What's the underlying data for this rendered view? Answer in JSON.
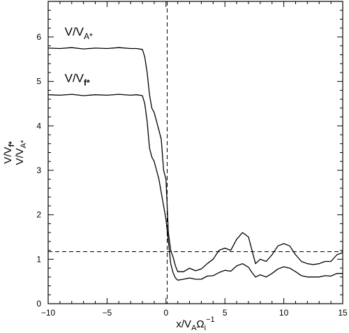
{
  "chart_data": {
    "type": "line",
    "xlim": [
      -10,
      15
    ],
    "ylim": [
      0,
      6.8
    ],
    "x_ticks": [
      -10,
      -5,
      0,
      5,
      10,
      15
    ],
    "y_ticks": [
      0,
      1,
      2,
      3,
      4,
      5,
      6
    ],
    "xlabel": {
      "base": "x/V",
      "sub1": "A",
      "mid": "Ω",
      "sub2": "i",
      "sup": "−1"
    },
    "ylabel": {
      "line1": {
        "base": "V/V",
        "sub": "f*"
      },
      "line2": {
        "base": "V/V",
        "sub": "A*"
      }
    },
    "reference_lines": {
      "vertical_x": 0.1,
      "horizontal_y": 1.17
    },
    "series": [
      {
        "name": "V/V_A*",
        "label": {
          "base": "V/V",
          "sub": "A*"
        },
        "x": [
          -10,
          -9,
          -8,
          -7,
          -6,
          -5,
          -4,
          -3,
          -2.5,
          -2,
          -1.8,
          -1.6,
          -1.4,
          -1.2,
          -1,
          -0.8,
          -0.6,
          -0.4,
          -0.2,
          0,
          0.2,
          0.4,
          0.6,
          0.8,
          1.0,
          1.5,
          2,
          2.5,
          3,
          3.5,
          4,
          4.5,
          5,
          5.5,
          6,
          6.5,
          7,
          7.3,
          7.6,
          8,
          8.5,
          9,
          9.5,
          10,
          10.5,
          11,
          11.5,
          12,
          12.5,
          13,
          13.5,
          14,
          14.5,
          15
        ],
        "y": [
          5.75,
          5.74,
          5.76,
          5.73,
          5.75,
          5.74,
          5.76,
          5.74,
          5.74,
          5.72,
          5.55,
          5.2,
          4.7,
          4.4,
          4.3,
          4.1,
          3.9,
          3.7,
          3.0,
          2.8,
          1.6,
          1.2,
          1.05,
          0.85,
          0.72,
          0.72,
          0.8,
          0.74,
          0.78,
          0.9,
          1.0,
          1.2,
          1.25,
          1.2,
          1.45,
          1.6,
          1.5,
          1.2,
          0.9,
          1.0,
          0.95,
          1.1,
          1.3,
          1.35,
          1.3,
          1.1,
          0.95,
          0.9,
          0.88,
          0.9,
          0.95,
          0.95,
          1.1,
          1.15
        ]
      },
      {
        "name": "V/V_f*",
        "label": {
          "base": "V/V",
          "sub": "f*"
        },
        "x": [
          -10,
          -9,
          -8,
          -7,
          -6,
          -5,
          -4,
          -3,
          -2.5,
          -2,
          -1.8,
          -1.6,
          -1.4,
          -1.2,
          -1,
          -0.8,
          -0.6,
          -0.4,
          -0.2,
          0,
          0.2,
          0.4,
          0.6,
          0.8,
          1.0,
          1.5,
          2,
          2.5,
          3,
          3.5,
          4,
          4.5,
          5,
          5.5,
          6,
          6.5,
          7,
          7.3,
          7.6,
          8,
          8.5,
          9,
          9.5,
          10,
          10.5,
          11,
          11.5,
          12,
          12.5,
          13,
          13.5,
          14,
          14.5,
          15
        ],
        "y": [
          4.7,
          4.69,
          4.71,
          4.68,
          4.7,
          4.69,
          4.71,
          4.69,
          4.7,
          4.68,
          4.5,
          4.1,
          3.5,
          3.3,
          3.2,
          3.0,
          2.8,
          2.5,
          2.2,
          1.9,
          1.4,
          0.9,
          0.7,
          0.58,
          0.53,
          0.55,
          0.58,
          0.55,
          0.55,
          0.62,
          0.63,
          0.7,
          0.75,
          0.73,
          0.85,
          0.9,
          0.82,
          0.7,
          0.6,
          0.65,
          0.6,
          0.68,
          0.78,
          0.83,
          0.8,
          0.72,
          0.63,
          0.6,
          0.6,
          0.6,
          0.63,
          0.62,
          0.68,
          0.68
        ]
      }
    ],
    "grid": false,
    "legend": "inline labels"
  }
}
